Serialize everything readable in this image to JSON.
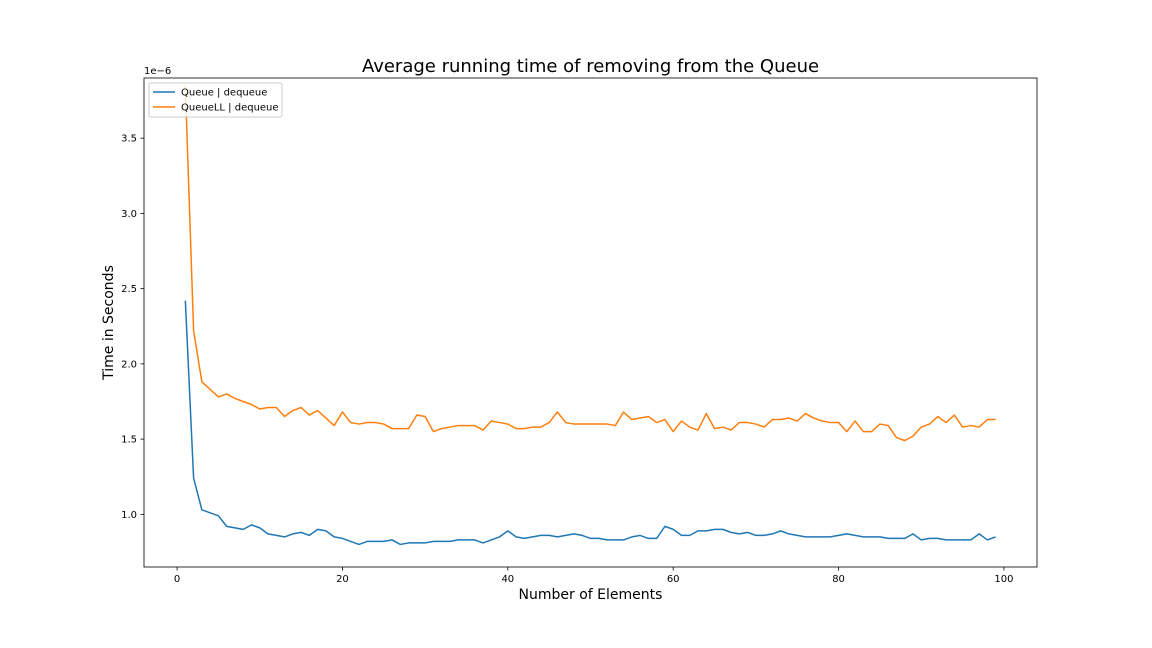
{
  "chart_data": {
    "type": "line",
    "title": "Average running time of removing from the Queue",
    "xlabel": "Number of Elements",
    "ylabel": "Time in Seconds",
    "y_offset_label": "1e−6",
    "xlim": [
      -4,
      104
    ],
    "ylim": [
      0.65,
      3.9
    ],
    "y_scale_factor": "1e-6",
    "grid": false,
    "legend_position": "top-left",
    "x_ticks": [
      0,
      20,
      40,
      60,
      80,
      100
    ],
    "x_tick_labels": [
      "0",
      "20",
      "40",
      "60",
      "80",
      "100"
    ],
    "y_ticks": [
      1.0,
      1.5,
      2.0,
      2.5,
      3.0,
      3.5
    ],
    "y_tick_labels": [
      "1.0",
      "1.5",
      "2.0",
      "2.5",
      "3.0",
      "3.5"
    ],
    "x": [
      1,
      2,
      3,
      4,
      5,
      6,
      7,
      8,
      9,
      10,
      11,
      12,
      13,
      14,
      15,
      16,
      17,
      18,
      19,
      20,
      21,
      22,
      23,
      24,
      25,
      26,
      27,
      28,
      29,
      30,
      31,
      32,
      33,
      34,
      35,
      36,
      37,
      38,
      39,
      40,
      41,
      42,
      43,
      44,
      45,
      46,
      47,
      48,
      49,
      50,
      51,
      52,
      53,
      54,
      55,
      56,
      57,
      58,
      59,
      60,
      61,
      62,
      63,
      64,
      65,
      66,
      67,
      68,
      69,
      70,
      71,
      72,
      73,
      74,
      75,
      76,
      77,
      78,
      79,
      80,
      81,
      82,
      83,
      84,
      85,
      86,
      87,
      88,
      89,
      90,
      91,
      92,
      93,
      94,
      95,
      96,
      97,
      98,
      99
    ],
    "series": [
      {
        "name": "Queue | dequeue",
        "color": "#1f77b4",
        "values": [
          2.42,
          1.24,
          1.03,
          1.01,
          0.99,
          0.92,
          0.91,
          0.9,
          0.93,
          0.91,
          0.87,
          0.86,
          0.85,
          0.87,
          0.88,
          0.86,
          0.9,
          0.89,
          0.85,
          0.84,
          0.82,
          0.8,
          0.82,
          0.82,
          0.82,
          0.83,
          0.8,
          0.81,
          0.81,
          0.81,
          0.82,
          0.82,
          0.82,
          0.83,
          0.83,
          0.83,
          0.81,
          0.83,
          0.85,
          0.89,
          0.85,
          0.84,
          0.85,
          0.86,
          0.86,
          0.85,
          0.86,
          0.87,
          0.86,
          0.84,
          0.84,
          0.83,
          0.83,
          0.83,
          0.85,
          0.86,
          0.84,
          0.84,
          0.92,
          0.9,
          0.86,
          0.86,
          0.89,
          0.89,
          0.9,
          0.9,
          0.88,
          0.87,
          0.88,
          0.86,
          0.86,
          0.87,
          0.89,
          0.87,
          0.86,
          0.85,
          0.85,
          0.85,
          0.85,
          0.86,
          0.87,
          0.86,
          0.85,
          0.85,
          0.85,
          0.84,
          0.84,
          0.84,
          0.87,
          0.83,
          0.84,
          0.84,
          0.83,
          0.83,
          0.83,
          0.83,
          0.87,
          0.83,
          0.85
        ]
      },
      {
        "name": "QueueLL | dequeue",
        "color": "#ff7f0e",
        "values": [
          3.85,
          2.22,
          1.88,
          1.83,
          1.78,
          1.8,
          1.77,
          1.75,
          1.73,
          1.7,
          1.71,
          1.71,
          1.65,
          1.69,
          1.71,
          1.66,
          1.69,
          1.64,
          1.59,
          1.68,
          1.61,
          1.6,
          1.61,
          1.61,
          1.6,
          1.57,
          1.57,
          1.57,
          1.66,
          1.65,
          1.55,
          1.57,
          1.58,
          1.59,
          1.59,
          1.59,
          1.56,
          1.62,
          1.61,
          1.6,
          1.57,
          1.57,
          1.58,
          1.58,
          1.61,
          1.68,
          1.61,
          1.6,
          1.6,
          1.6,
          1.6,
          1.6,
          1.59,
          1.68,
          1.63,
          1.64,
          1.65,
          1.61,
          1.63,
          1.55,
          1.62,
          1.58,
          1.56,
          1.67,
          1.57,
          1.58,
          1.56,
          1.61,
          1.61,
          1.6,
          1.58,
          1.63,
          1.63,
          1.64,
          1.62,
          1.67,
          1.64,
          1.62,
          1.61,
          1.61,
          1.55,
          1.62,
          1.55,
          1.55,
          1.6,
          1.59,
          1.51,
          1.49,
          1.52,
          1.58,
          1.6,
          1.65,
          1.61,
          1.66,
          1.58,
          1.59,
          1.58,
          1.63,
          1.63
        ]
      }
    ]
  }
}
